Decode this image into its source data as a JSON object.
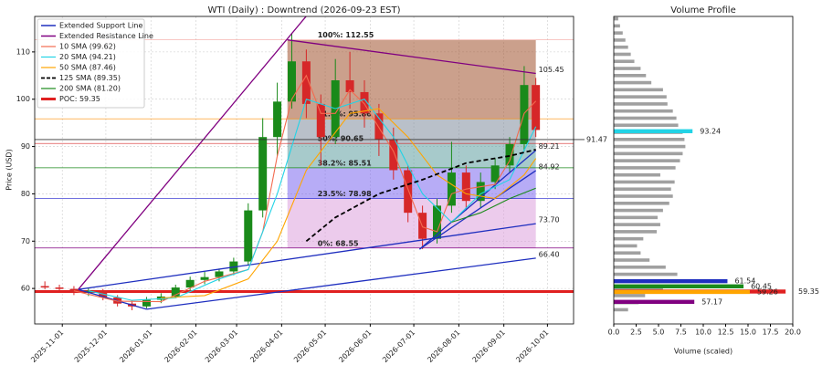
{
  "chart_data": [
    {
      "type": "candlestick",
      "title": "WTI (Daily) : Downtrend (2026-09-23 EST)",
      "ylabel": "Price (USD)",
      "x": [
        "2025-10-20",
        "2025-10-30",
        "2025-11-09",
        "2025-11-19",
        "2025-11-29",
        "2025-12-09",
        "2025-12-19",
        "2025-12-29",
        "2026-01-08",
        "2026-01-18",
        "2026-01-28",
        "2026-02-07",
        "2026-02-17",
        "2026-02-27",
        "2026-03-09",
        "2026-03-19",
        "2026-03-29",
        "2026-04-08",
        "2026-04-18",
        "2026-04-28",
        "2026-05-08",
        "2026-05-18",
        "2026-05-28",
        "2026-06-07",
        "2026-06-17",
        "2026-06-27",
        "2026-07-07",
        "2026-07-17",
        "2026-07-27",
        "2026-08-06",
        "2026-08-16",
        "2026-08-26",
        "2026-09-05",
        "2026-09-15",
        "2026-09-23"
      ],
      "open": [
        60.5,
        60.2,
        59.9,
        59.2,
        59.5,
        58.1,
        56.8,
        56.2,
        57.6,
        58.3,
        60.2,
        61.8,
        62.4,
        63.6,
        65.7,
        76.5,
        92.0,
        99.5,
        108.0,
        99.0,
        92.0,
        104.0,
        101.5,
        97.0,
        91.5,
        85.0,
        76.0,
        70.5,
        77.5,
        84.5,
        78.5,
        82.5,
        86.0,
        90.5,
        103.0
      ],
      "high": [
        61.5,
        60.8,
        60.5,
        60.2,
        59.9,
        58.6,
        57.5,
        58.2,
        59.0,
        60.8,
        62.5,
        63.5,
        64.2,
        66.5,
        78.0,
        96.0,
        103.5,
        114.0,
        110.5,
        101.0,
        108.5,
        110.0,
        104.0,
        99.0,
        94.0,
        86.0,
        77.5,
        79.0,
        91.0,
        86.0,
        84.5,
        87.5,
        92.0,
        107.0,
        104.5
      ],
      "low": [
        59.8,
        59.5,
        58.6,
        58.4,
        57.5,
        56.2,
        55.4,
        55.8,
        56.9,
        57.9,
        59.6,
        60.9,
        61.5,
        62.8,
        65.0,
        75.0,
        88.0,
        98.0,
        96.0,
        86.0,
        90.5,
        98.0,
        94.0,
        88.0,
        83.0,
        74.0,
        68.3,
        69.5,
        76.0,
        76.5,
        77.0,
        81.0,
        84.5,
        89.0,
        92.0
      ],
      "close": [
        60.2,
        59.9,
        59.2,
        59.5,
        58.1,
        56.8,
        56.2,
        57.6,
        58.3,
        60.2,
        61.8,
        62.4,
        63.6,
        65.7,
        76.5,
        92.0,
        99.5,
        108.0,
        99.0,
        92.0,
        104.0,
        101.5,
        97.0,
        91.5,
        85.0,
        76.0,
        70.5,
        77.5,
        84.5,
        78.5,
        82.5,
        86.0,
        90.5,
        103.0,
        93.5
      ],
      "up_color": "#1a8a1a",
      "down_color": "#d62728",
      "xlim": [
        "2025-10-13",
        "2026-10-19"
      ],
      "xticks": [
        "2025-11-01",
        "2025-12-01",
        "2026-01-01",
        "2026-02-01",
        "2026-03-01",
        "2026-04-01",
        "2026-05-01",
        "2026-06-01",
        "2026-07-01",
        "2026-08-01",
        "2026-09-01",
        "2026-10-01"
      ],
      "ylim": [
        52.5,
        117.5
      ],
      "yticks": [
        60,
        70,
        80,
        90,
        100,
        110
      ],
      "grid": true,
      "support": {
        "name": "Extended Support Line",
        "color": "#1f2fbf",
        "lines": [
          {
            "x": [
              "2025-11-12",
              "2025-12-29"
            ],
            "values": [
              59.8,
              55.6
            ]
          },
          {
            "x": [
              "2025-11-12",
              "2026-09-23"
            ],
            "values": [
              59.8,
              73.7
            ],
            "end_label": "73.70"
          },
          {
            "x": [
              "2025-12-29",
              "2026-09-23"
            ],
            "values": [
              55.6,
              66.4
            ],
            "end_label": "66.40"
          },
          {
            "x": [
              "2026-07-05",
              "2026-09-23"
            ],
            "values": [
              68.3,
              84.92
            ],
            "end_label": "84.92"
          },
          {
            "x": [
              "2026-07-05",
              "2026-09-23"
            ],
            "values": [
              68.3,
              89.21
            ],
            "end_label": "89.21"
          }
        ]
      },
      "resistance": {
        "name": "Extended Resistance Line",
        "color": "#800080",
        "lines": [
          {
            "x": [
              "2025-11-12",
              "2026-04-30"
            ],
            "values": [
              59.8,
              122.0
            ]
          },
          {
            "x": [
              "2026-04-05",
              "2026-09-23"
            ],
            "values": [
              112.55,
              105.45
            ],
            "end_label": "105.45"
          }
        ]
      },
      "sma": [
        {
          "name": "10 SMA (99.62)",
          "color": "#f26b50",
          "dash": false,
          "x": [
            "2025-11-09",
            "2025-12-09",
            "2026-01-08",
            "2026-02-07",
            "2026-03-09",
            "2026-03-19",
            "2026-03-29",
            "2026-04-08",
            "2026-04-18",
            "2026-04-28",
            "2026-05-08",
            "2026-05-18",
            "2026-05-28",
            "2026-06-17",
            "2026-07-07",
            "2026-07-17",
            "2026-07-27",
            "2026-08-06",
            "2026-08-26",
            "2026-09-05",
            "2026-09-15",
            "2026-09-23"
          ],
          "values": [
            59.5,
            57.3,
            57.2,
            61.5,
            64,
            72,
            88,
            100,
            105,
            97,
            97,
            102,
            99,
            89,
            73,
            72,
            80,
            81,
            82,
            87,
            97,
            99.62
          ]
        },
        {
          "name": "20 SMA (94.21)",
          "color": "#22d3e6",
          "dash": false,
          "x": [
            "2025-11-19",
            "2025-12-19",
            "2026-01-18",
            "2026-02-17",
            "2026-03-09",
            "2026-03-29",
            "2026-04-18",
            "2026-05-08",
            "2026-05-28",
            "2026-06-17",
            "2026-07-07",
            "2026-07-27",
            "2026-08-16",
            "2026-09-05",
            "2026-09-23"
          ],
          "values": [
            59.5,
            57.5,
            58,
            62,
            64,
            80,
            100,
            98,
            100,
            92,
            80,
            74,
            80,
            83,
            94.21
          ]
        },
        {
          "name": "50 SMA (87.46)",
          "color": "#ffa500",
          "dash": false,
          "x": [
            "2026-01-08",
            "2026-02-07",
            "2026-03-09",
            "2026-03-29",
            "2026-04-18",
            "2026-05-18",
            "2026-06-07",
            "2026-06-27",
            "2026-07-17",
            "2026-08-06",
            "2026-08-26",
            "2026-09-15",
            "2026-09-23"
          ],
          "values": [
            58,
            58.5,
            62,
            70,
            85,
            97,
            98,
            92,
            84,
            80,
            79,
            84,
            87.46
          ]
        },
        {
          "name": "125 SMA (89.35)",
          "color": "#000000",
          "dash": true,
          "x": [
            "2026-04-18",
            "2026-05-08",
            "2026-06-07",
            "2026-07-07",
            "2026-08-06",
            "2026-09-05",
            "2026-09-23"
          ],
          "values": [
            70,
            75,
            80,
            83,
            86.5,
            88,
            89.35
          ]
        },
        {
          "name": "200 SMA (81.20)",
          "color": "#1a8a1a",
          "dash": false,
          "x": [
            "2026-07-27",
            "2026-08-16",
            "2026-09-05",
            "2026-09-23"
          ],
          "values": [
            74,
            76,
            79,
            81.2
          ]
        }
      ],
      "poc": {
        "name": "POC: 59.35",
        "value": 59.35,
        "color": "#e02020"
      },
      "fib": {
        "x": [
          "2026-04-05",
          "2026-09-23"
        ],
        "levels": [
          {
            "value": 112.55,
            "label": "100%: 112.55",
            "color": "#f4a6a0"
          },
          {
            "value": 95.86,
            "label": "61.8%: 95.86",
            "color": "#ff8c00"
          },
          {
            "value": 90.65,
            "label": "50%: 90.65",
            "color": "#d62728"
          },
          {
            "value": 85.51,
            "label": "38.2%: 85.51",
            "color": "#1a8a1a"
          },
          {
            "value": 78.98,
            "label": "23.5%: 78.98",
            "color": "#1f1fcc"
          },
          {
            "value": 68.55,
            "label": "0%: 68.55",
            "color": "#800080"
          }
        ],
        "zone_colors": [
          "#a0522d",
          "#7f8c9d",
          "#5f9ea0",
          "#7b68ee",
          "#dda0dd"
        ]
      },
      "hlines": [
        {
          "value": 91.47,
          "label": "91.47",
          "color": "#333333"
        }
      ]
    },
    {
      "type": "hbar",
      "title": "Volume Profile",
      "xlabel": "Volume (scaled)",
      "xlim": [
        0,
        20
      ],
      "xticks": [
        {
          "value": 0,
          "label": "0.0"
        },
        {
          "value": 2.5,
          "label": "2.5"
        },
        {
          "value": 5,
          "label": "5.0"
        },
        {
          "value": 7.5,
          "label": "7.5"
        },
        {
          "value": 10,
          "label": "10.0"
        },
        {
          "value": 12.5,
          "label": "12.5"
        },
        {
          "value": 15,
          "label": "15.0"
        },
        {
          "value": 17.5,
          "label": "17.5"
        },
        {
          "value": 20,
          "label": "20.0"
        }
      ],
      "color": "#a0a0a0",
      "bins": [
        55.5,
        57,
        58.5,
        60,
        61.5,
        63,
        64.5,
        66,
        67.5,
        69,
        70.5,
        72,
        73.5,
        75,
        76.5,
        78,
        79.5,
        81,
        82.5,
        84,
        85.5,
        87,
        88.5,
        90,
        91.5,
        93,
        94.5,
        96,
        97.5,
        99,
        100.5,
        102,
        103.5,
        105,
        106.5,
        108,
        109.5,
        111,
        112.5,
        114,
        115.5,
        117
      ],
      "values": [
        1.6,
        2.8,
        3.5,
        5.5,
        7.3,
        7.1,
        5.8,
        4.0,
        3.0,
        2.6,
        3.3,
        4.8,
        5.2,
        4.9,
        5.5,
        6.2,
        6.6,
        6.4,
        6.8,
        5.2,
        6.9,
        7.4,
        7.7,
        8.0,
        7.9,
        7.7,
        7.2,
        7.0,
        6.6,
        6.0,
        5.9,
        5.5,
        4.2,
        3.6,
        3.0,
        2.3,
        1.9,
        1.6,
        1.3,
        1.0,
        0.7,
        0.5
      ],
      "highlights": [
        {
          "price": 93.24,
          "value": 8.8,
          "color": "#22d3e6",
          "label": "93.24"
        },
        {
          "price": 61.54,
          "value": 12.7,
          "color": "#1f2fbf",
          "label": "61.54"
        },
        {
          "price": 60.45,
          "value": 14.5,
          "color": "#1a8a1a",
          "label": "60.45"
        },
        {
          "price": 59.35,
          "value": 19.2,
          "color": "#e02020",
          "label": "59.35"
        },
        {
          "price": 59.26,
          "value": 15.2,
          "color": "#ffa500",
          "label": "59.26"
        },
        {
          "price": 57.17,
          "value": 9.0,
          "color": "#800080",
          "label": "57.17"
        }
      ]
    }
  ]
}
